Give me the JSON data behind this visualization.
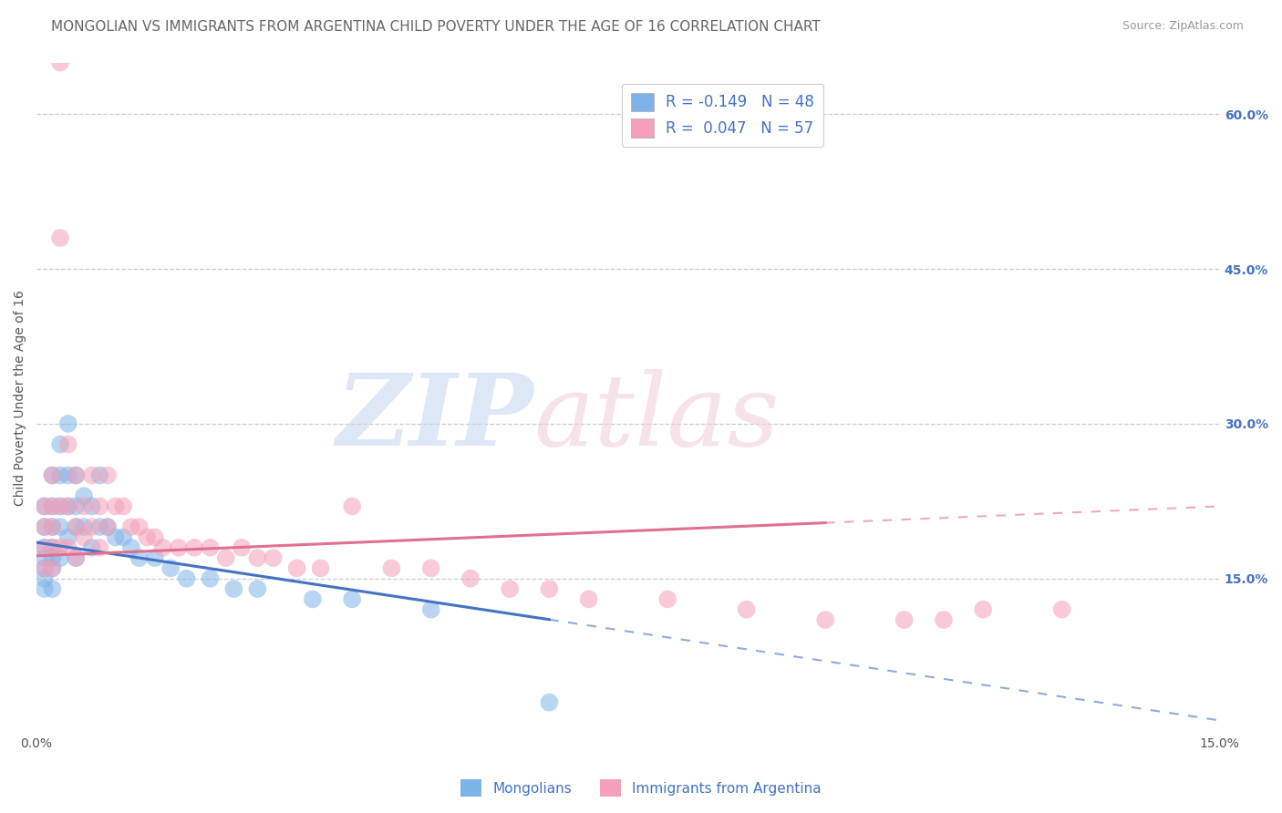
{
  "title": "MONGOLIAN VS IMMIGRANTS FROM ARGENTINA CHILD POVERTY UNDER THE AGE OF 16 CORRELATION CHART",
  "source": "Source: ZipAtlas.com",
  "ylabel": "Child Poverty Under the Age of 16",
  "right_yticks": [
    "60.0%",
    "45.0%",
    "30.0%",
    "15.0%"
  ],
  "right_ytick_vals": [
    0.6,
    0.45,
    0.3,
    0.15
  ],
  "legend_mongolian": "R = -0.149   N = 48",
  "legend_argentina": "R =  0.047   N = 57",
  "mongolian_color": "#7EB3E8",
  "argentina_color": "#F4A0B8",
  "mongolian_line_color": "#4472C4",
  "argentina_line_color": "#E07090",
  "background_color": "#FFFFFF",
  "grid_color": "#CCCCCC",
  "title_fontsize": 11,
  "axis_label_fontsize": 10,
  "tick_fontsize": 10,
  "legend_fontsize": 12,
  "xlim": [
    0.0,
    0.15
  ],
  "ylim": [
    0.0,
    0.65
  ],
  "mongolian_scatter_x": [
    0.001,
    0.001,
    0.001,
    0.001,
    0.001,
    0.001,
    0.001,
    0.002,
    0.002,
    0.002,
    0.002,
    0.002,
    0.002,
    0.002,
    0.003,
    0.003,
    0.003,
    0.003,
    0.003,
    0.004,
    0.004,
    0.004,
    0.004,
    0.005,
    0.005,
    0.005,
    0.005,
    0.006,
    0.006,
    0.007,
    0.007,
    0.008,
    0.008,
    0.009,
    0.01,
    0.011,
    0.012,
    0.013,
    0.015,
    0.017,
    0.019,
    0.022,
    0.025,
    0.028,
    0.035,
    0.04,
    0.05,
    0.065
  ],
  "mongolian_scatter_y": [
    0.22,
    0.2,
    0.18,
    0.17,
    0.16,
    0.15,
    0.14,
    0.25,
    0.22,
    0.2,
    0.18,
    0.17,
    0.16,
    0.14,
    0.28,
    0.25,
    0.22,
    0.2,
    0.17,
    0.3,
    0.25,
    0.22,
    0.19,
    0.25,
    0.22,
    0.2,
    0.17,
    0.23,
    0.2,
    0.22,
    0.18,
    0.25,
    0.2,
    0.2,
    0.19,
    0.19,
    0.18,
    0.17,
    0.17,
    0.16,
    0.15,
    0.15,
    0.14,
    0.14,
    0.13,
    0.13,
    0.12,
    0.03
  ],
  "argentina_scatter_x": [
    0.001,
    0.001,
    0.001,
    0.001,
    0.002,
    0.002,
    0.002,
    0.002,
    0.002,
    0.003,
    0.003,
    0.003,
    0.003,
    0.004,
    0.004,
    0.004,
    0.005,
    0.005,
    0.005,
    0.006,
    0.006,
    0.007,
    0.007,
    0.008,
    0.008,
    0.009,
    0.009,
    0.01,
    0.011,
    0.012,
    0.013,
    0.014,
    0.015,
    0.016,
    0.018,
    0.02,
    0.022,
    0.024,
    0.026,
    0.028,
    0.03,
    0.033,
    0.036,
    0.04,
    0.045,
    0.05,
    0.055,
    0.06,
    0.065,
    0.07,
    0.08,
    0.09,
    0.1,
    0.11,
    0.115,
    0.12,
    0.13
  ],
  "argentina_scatter_y": [
    0.22,
    0.2,
    0.18,
    0.16,
    0.25,
    0.22,
    0.2,
    0.18,
    0.16,
    0.65,
    0.48,
    0.22,
    0.18,
    0.28,
    0.22,
    0.18,
    0.25,
    0.2,
    0.17,
    0.22,
    0.19,
    0.25,
    0.2,
    0.22,
    0.18,
    0.25,
    0.2,
    0.22,
    0.22,
    0.2,
    0.2,
    0.19,
    0.19,
    0.18,
    0.18,
    0.18,
    0.18,
    0.17,
    0.18,
    0.17,
    0.17,
    0.16,
    0.16,
    0.22,
    0.16,
    0.16,
    0.15,
    0.14,
    0.14,
    0.13,
    0.13,
    0.12,
    0.11,
    0.11,
    0.11,
    0.12,
    0.12
  ]
}
